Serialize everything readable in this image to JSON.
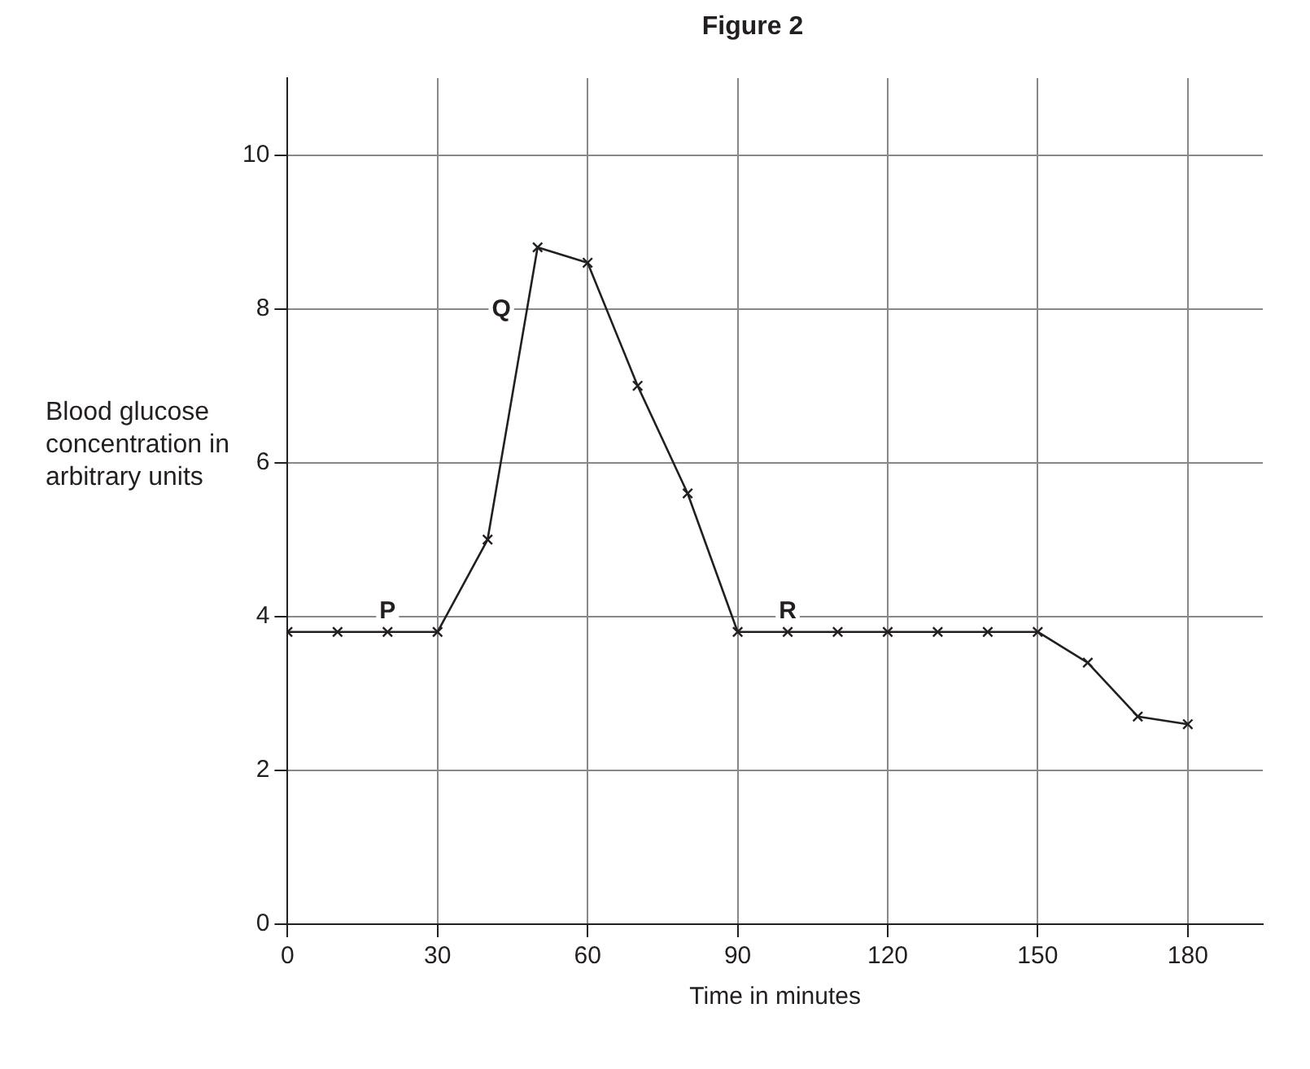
{
  "chart_data": {
    "type": "line",
    "title": "Figure 2",
    "xlabel": "Time in minutes",
    "ylabel": "Blood glucose concentration in arbitrary units",
    "x": [
      0,
      10,
      20,
      30,
      40,
      50,
      60,
      70,
      80,
      90,
      100,
      110,
      120,
      130,
      140,
      150,
      160,
      170,
      180
    ],
    "series": [
      {
        "color": "#231f20",
        "values": [
          3.8,
          3.8,
          3.8,
          3.8,
          5.0,
          8.8,
          8.6,
          7.0,
          5.6,
          3.8,
          3.8,
          3.8,
          3.8,
          3.8,
          3.8,
          3.8,
          3.4,
          2.7,
          2.6
        ]
      }
    ],
    "xlim": [
      0,
      195
    ],
    "xticks": [
      0,
      30,
      60,
      90,
      120,
      150,
      180
    ],
    "ylim": [
      0,
      11
    ],
    "yticks": [
      0,
      2,
      4,
      6,
      8,
      10
    ],
    "annotations": [
      {
        "text": "P",
        "x": 20,
        "y": 3.8
      },
      {
        "text": "Q",
        "x": 47.9,
        "y": 8
      },
      {
        "text": "R",
        "x": 100,
        "y": 3.8
      }
    ],
    "grid": true,
    "marker": "cross",
    "line_style": "solid",
    "legend": false
  }
}
